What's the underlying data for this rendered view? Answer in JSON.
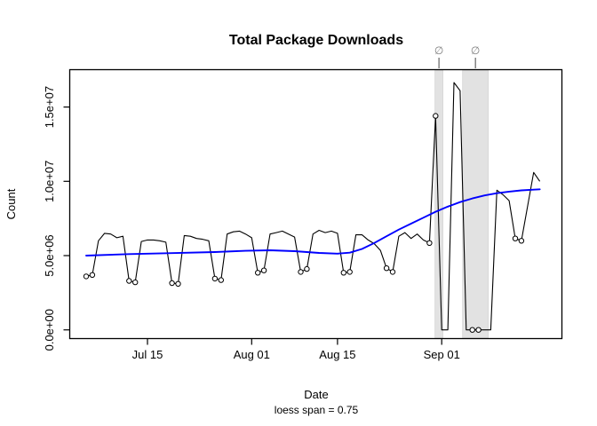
{
  "chart_data": {
    "type": "line",
    "title": "Total Package Downloads",
    "xlabel": "Date",
    "sub": "loess span = 0.75",
    "ylabel": "Count",
    "null_symbol": "∅",
    "legend_position": "none",
    "grid": false,
    "x_axis": {
      "start_date": "Jul 5",
      "end_date": "Sep 17",
      "ticks": [
        {
          "day": 10,
          "label": "Jul 15"
        },
        {
          "day": 27,
          "label": "Aug 01"
        },
        {
          "day": 41,
          "label": "Aug 15"
        },
        {
          "day": 58,
          "label": "Sep 01"
        }
      ]
    },
    "y_axis": {
      "min": 0,
      "max": 17500000,
      "ticks": [
        {
          "value": 0,
          "label": "0.0e+00"
        },
        {
          "value": 5000000,
          "label": "5.0e+06"
        },
        {
          "value": 10000000,
          "label": "1.0e+07"
        },
        {
          "value": 15000000,
          "label": "1.5e+07"
        }
      ]
    },
    "dates": [
      "Jul 5",
      "Jul 6",
      "Jul 7",
      "Jul 8",
      "Jul 9",
      "Jul 10",
      "Jul 11",
      "Jul 12",
      "Jul 13",
      "Jul 14",
      "Jul 15",
      "Jul 16",
      "Jul 17",
      "Jul 18",
      "Jul 19",
      "Jul 20",
      "Jul 21",
      "Jul 22",
      "Jul 23",
      "Jul 24",
      "Jul 25",
      "Jul 26",
      "Jul 27",
      "Jul 28",
      "Jul 29",
      "Jul 30",
      "Jul 31",
      "Aug 1",
      "Aug 2",
      "Aug 3",
      "Aug 4",
      "Aug 5",
      "Aug 6",
      "Aug 7",
      "Aug 8",
      "Aug 9",
      "Aug 10",
      "Aug 11",
      "Aug 12",
      "Aug 13",
      "Aug 14",
      "Aug 15",
      "Aug 16",
      "Aug 17",
      "Aug 18",
      "Aug 19",
      "Aug 20",
      "Aug 21",
      "Aug 22",
      "Aug 23",
      "Aug 24",
      "Aug 25",
      "Aug 26",
      "Aug 27",
      "Aug 28",
      "Aug 29",
      "Aug 30",
      "Aug 31",
      "Sep 1",
      "Sep 2",
      "Sep 3",
      "Sep 4",
      "Sep 5",
      "Sep 6",
      "Sep 7",
      "Sep 8",
      "Sep 9",
      "Sep 10",
      "Sep 11",
      "Sep 12",
      "Sep 13",
      "Sep 14",
      "Sep 15",
      "Sep 16",
      "Sep 17"
    ],
    "values": [
      3600000,
      3700000,
      6000000,
      6500000,
      6450000,
      6200000,
      6300000,
      3300000,
      3200000,
      5950000,
      6050000,
      6050000,
      6000000,
      5900000,
      3150000,
      3100000,
      6350000,
      6300000,
      6150000,
      6100000,
      6000000,
      3450000,
      3350000,
      6450000,
      6600000,
      6650000,
      6450000,
      6200000,
      3850000,
      4000000,
      6450000,
      6550000,
      6650000,
      6450000,
      6250000,
      3900000,
      4100000,
      6450000,
      6700000,
      6550000,
      6650000,
      6500000,
      3850000,
      3900000,
      6400000,
      6400000,
      6050000,
      5800000,
      5350000,
      4150000,
      3900000,
      6300000,
      6550000,
      6150000,
      6450000,
      6050000,
      5850000,
      14400000,
      0,
      0,
      16650000,
      16100000,
      0,
      0,
      0,
      0,
      0,
      9400000,
      9100000,
      8700000,
      6150000,
      6000000,
      8300000,
      10600000,
      10000000
    ],
    "circled_weekend_indices": [
      0,
      1,
      7,
      8,
      14,
      15,
      21,
      22,
      28,
      29,
      35,
      36,
      42,
      43,
      49,
      50,
      56,
      57,
      63,
      64,
      70,
      71
    ],
    "loess": [
      [
        0,
        5000000
      ],
      [
        7,
        5100000
      ],
      [
        14,
        5170000
      ],
      [
        21,
        5240000
      ],
      [
        26,
        5320000
      ],
      [
        30,
        5360000
      ],
      [
        34,
        5300000
      ],
      [
        38,
        5180000
      ],
      [
        41,
        5130000
      ],
      [
        43,
        5200000
      ],
      [
        45,
        5450000
      ],
      [
        47,
        5850000
      ],
      [
        49,
        6300000
      ],
      [
        51,
        6750000
      ],
      [
        53,
        7150000
      ],
      [
        55,
        7550000
      ],
      [
        57,
        7950000
      ],
      [
        59,
        8300000
      ],
      [
        61,
        8600000
      ],
      [
        63,
        8850000
      ],
      [
        65,
        9050000
      ],
      [
        67,
        9200000
      ],
      [
        69,
        9310000
      ],
      [
        71,
        9390000
      ],
      [
        73,
        9440000
      ],
      [
        74,
        9460000
      ]
    ],
    "missing_bands": [
      {
        "from_day": 56.9,
        "to_day": 58.2
      },
      {
        "from_day": 61.4,
        "to_day": 65.6
      }
    ],
    "colors": {
      "line": "#000000",
      "loess": "#0000ff",
      "band_fill": "#e2e2e2",
      "band_border": "#d5d5d5",
      "marker_fill": "#ffffff",
      "marker_stroke": "#000000",
      "null_marker": "#7f7f7f",
      "box": "#000000"
    }
  }
}
